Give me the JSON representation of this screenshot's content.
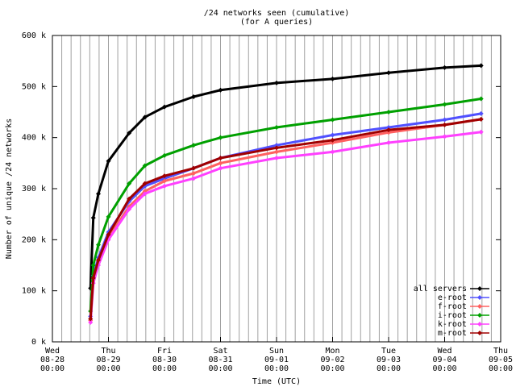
{
  "chart_data": {
    "type": "line",
    "title": "/24 networks seen (cumulative)",
    "subtitle": "(for A queries)",
    "xlabel": "Time (UTC)",
    "ylabel": "Number of unique /24 networks",
    "x": [
      0.68,
      0.73,
      0.82,
      1.0,
      1.37,
      1.65,
      2.0,
      2.52,
      3.0,
      4.0,
      5.0,
      6.0,
      7.0,
      7.65
    ],
    "series": [
      {
        "name": "all servers",
        "color": "#000000",
        "values": [
          105000,
          243000,
          290000,
          354000,
          409000,
          440000,
          460000,
          480000,
          493000,
          507000,
          515000,
          527000,
          537000,
          541000
        ]
      },
      {
        "name": "e-root",
        "color": "#5050ff",
        "values": [
          50000,
          130000,
          165000,
          215000,
          275000,
          305000,
          320000,
          340000,
          360000,
          385000,
          405000,
          420000,
          435000,
          447000
        ]
      },
      {
        "name": "f-root",
        "color": "#ff6060",
        "values": [
          42000,
          122000,
          158000,
          205000,
          265000,
          295000,
          315000,
          330000,
          350000,
          372000,
          390000,
          410000,
          425000,
          436000
        ]
      },
      {
        "name": "i-root",
        "color": "#00a000",
        "values": [
          60000,
          150000,
          190000,
          245000,
          310000,
          345000,
          365000,
          385000,
          400000,
          420000,
          435000,
          450000,
          465000,
          476000
        ]
      },
      {
        "name": "k-root",
        "color": "#ff40ff",
        "values": [
          38000,
          115000,
          150000,
          200000,
          260000,
          290000,
          305000,
          320000,
          340000,
          360000,
          372000,
          390000,
          402000,
          411000
        ]
      },
      {
        "name": "m-root",
        "color": "#a00000",
        "values": [
          45000,
          125000,
          160000,
          210000,
          280000,
          310000,
          325000,
          340000,
          360000,
          380000,
          395000,
          415000,
          425000,
          436000
        ]
      }
    ],
    "xlim": [
      0,
      8
    ],
    "xticks": [
      {
        "value": 0,
        "label": "Wed\n08-28\n00:00"
      },
      {
        "value": 1,
        "label": "Thu\n08-29\n00:00"
      },
      {
        "value": 2,
        "label": "Fri\n08-30\n00:00"
      },
      {
        "value": 3,
        "label": "Sat\n08-31\n00:00"
      },
      {
        "value": 4,
        "label": "Sun\n09-01\n00:00"
      },
      {
        "value": 5,
        "label": "Mon\n09-02\n00:00"
      },
      {
        "value": 6,
        "label": "Tue\n09-03\n00:00"
      },
      {
        "value": 7,
        "label": "Wed\n09-04\n00:00"
      },
      {
        "value": 8,
        "label": "Thu\n09-05\n00:00"
      }
    ],
    "ylim": [
      0,
      600000
    ],
    "yticks": [
      {
        "value": 0,
        "label": "0 k"
      },
      {
        "value": 100000,
        "label": "100 k"
      },
      {
        "value": 200000,
        "label": "200 k"
      },
      {
        "value": 300000,
        "label": "300 k"
      },
      {
        "value": 400000,
        "label": "400 k"
      },
      {
        "value": 500000,
        "label": "500 k"
      },
      {
        "value": 600000,
        "label": "600 k"
      }
    ],
    "grid": true,
    "legend": "lower right"
  }
}
